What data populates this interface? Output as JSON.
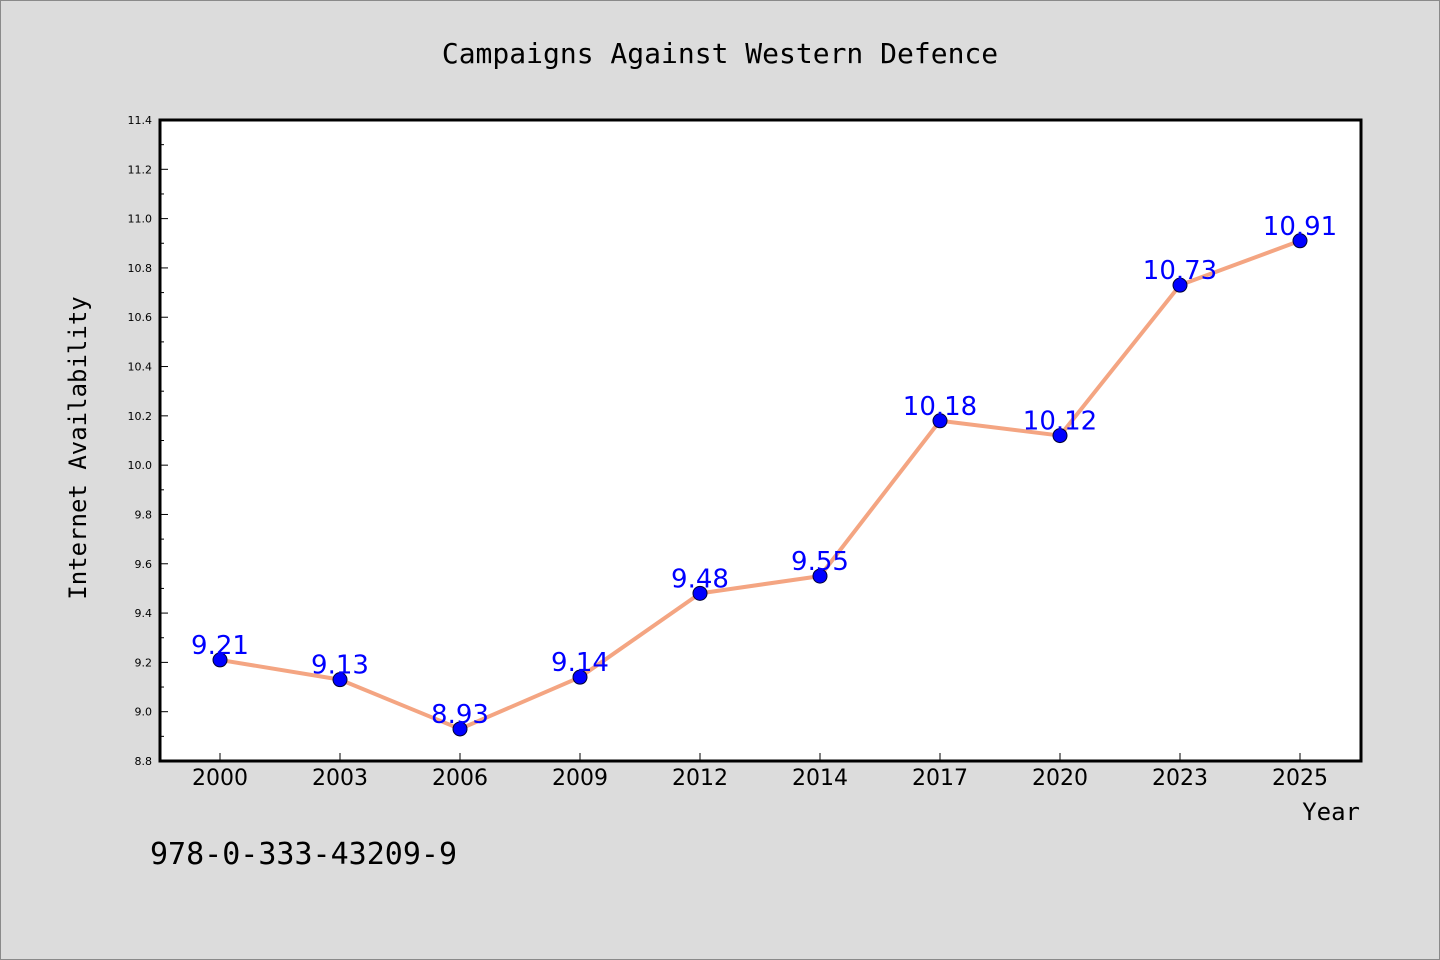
{
  "chart_data": {
    "type": "line",
    "title": "Campaigns Against Western Defence",
    "xlabel": "Year",
    "ylabel": "Internet Availability",
    "categories": [
      "2000",
      "2003",
      "2006",
      "2009",
      "2012",
      "2014",
      "2017",
      "2020",
      "2023",
      "2025"
    ],
    "series": [
      {
        "values": [
          9.21,
          9.13,
          8.93,
          9.14,
          9.48,
          9.55,
          10.18,
          10.12,
          10.73,
          10.91
        ]
      }
    ],
    "data_labels": [
      "9.21",
      "9.13",
      "8.93",
      "9.14",
      "9.48",
      "9.55",
      "10.18",
      "10.12",
      "10.73",
      "10.91"
    ],
    "ylim": [
      8.8,
      11.4
    ],
    "yticks": [
      "8.8",
      "9.0",
      "9.2",
      "9.4",
      "9.6",
      "9.8",
      "10.0",
      "10.2",
      "10.4",
      "10.6",
      "10.8",
      "11.0",
      "11.2",
      "11.4"
    ],
    "grid": false,
    "colors": {
      "line": "#f4a582",
      "marker": "#0000ff",
      "label": "#0000ff",
      "background": "#dcdcdc",
      "plot_bg": "#ffffff"
    }
  },
  "annotation": "978-0-333-43209-9"
}
